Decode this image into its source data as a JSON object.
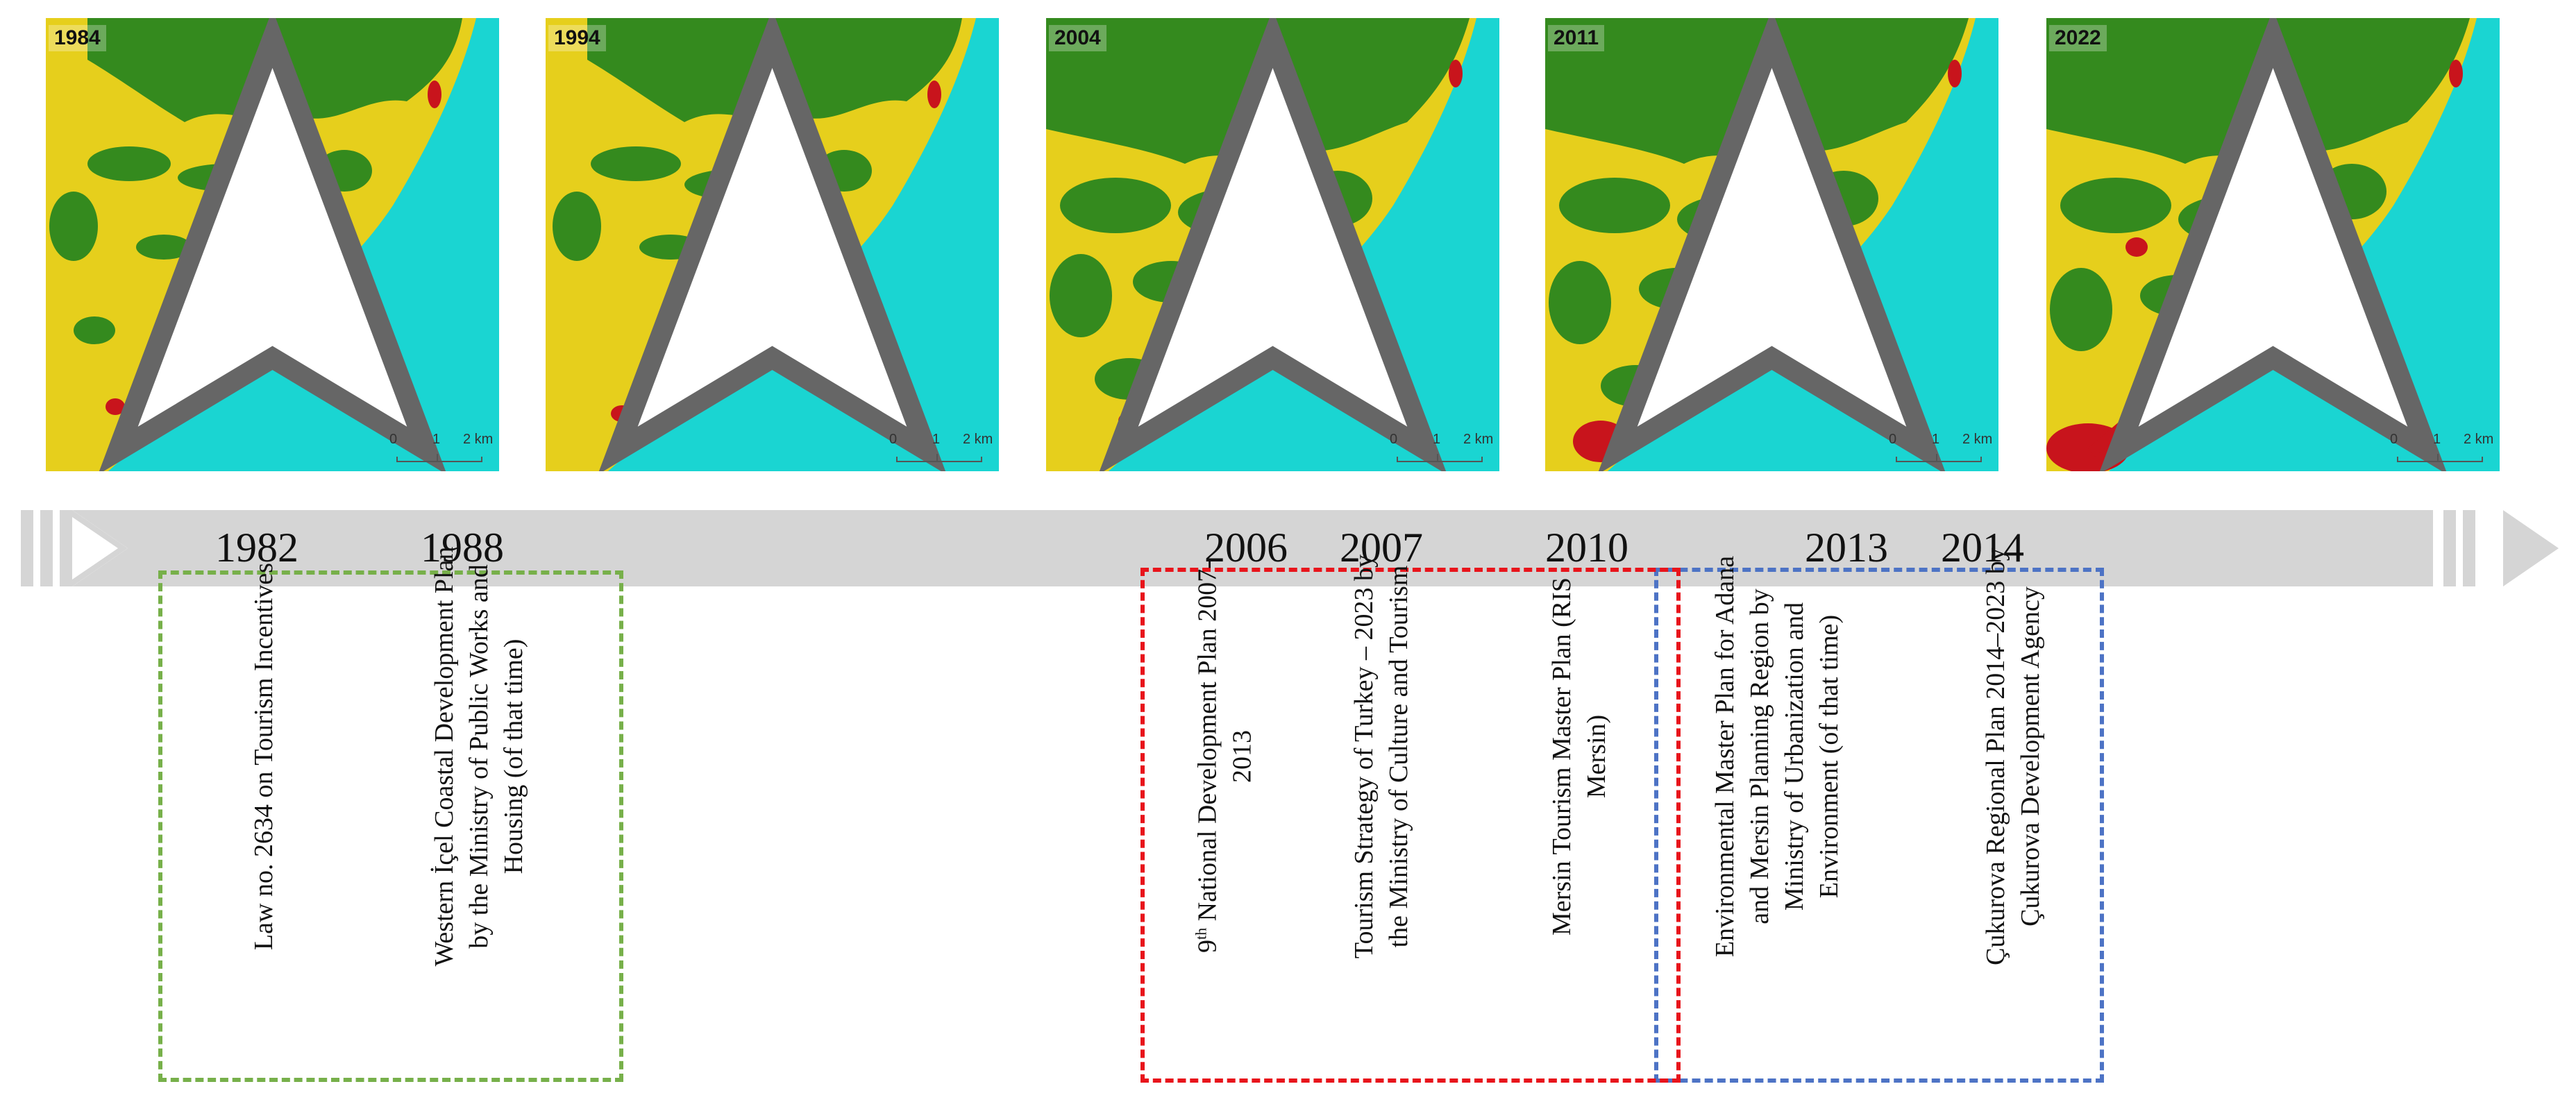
{
  "maps": [
    {
      "year": "1984"
    },
    {
      "year": "1994"
    },
    {
      "year": "2004"
    },
    {
      "year": "2011"
    },
    {
      "year": "2022"
    }
  ],
  "scale_bar": {
    "t0": "0",
    "t1": "1",
    "t2": "2 km"
  },
  "colors": {
    "sea": "#1ad5d2",
    "agriculture": "#e6cf1c",
    "forest": "#348a1e",
    "urban": "#c8141c",
    "timeline": "#d5d5d5",
    "green_box": "#77b04a",
    "red_box": "#e8141b",
    "blue_box": "#4d73c5"
  },
  "timeline": {
    "years": [
      "1982",
      "1988",
      "2006",
      "2007",
      "2010",
      "2013",
      "2014"
    ]
  },
  "events": {
    "e1982": "Law no. 2634 on Tourism Incentives",
    "e1988": "Western İçel Coastal Development Plan by the Ministry of Public Works and Housing (of that time)",
    "e2006_sup": "th",
    "e2006_a": "9",
    "e2006_b": " National Development Plan 2007-2013",
    "e2007": "Tourism Strategy of Turkey – 2023 by the Ministry of Culture and Tourism",
    "e2010": "Mersin Tourism Master Plan (RIS Mersin)",
    "e2013": "Environmental Master Plan for Adana and Mersin Planning Region by Ministry of Urbanization and Environment (of that time)",
    "e2014": "Çukurova Regional Plan 2014–2023 by Çukurova Development Agency"
  }
}
